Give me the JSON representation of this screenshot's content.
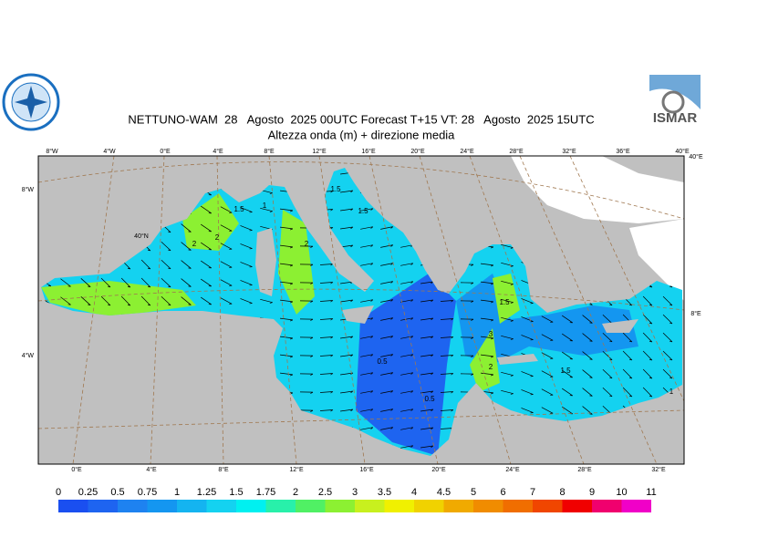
{
  "header": {
    "title": "NETTUNO-WAM  28   Agosto  2025 00UTC Forecast T+15 VT: 28   Agosto  2025 15UTC",
    "subtitle": "Altezza onda (m) + direzione media",
    "logo": "ISMAR"
  },
  "map": {
    "top_labels": [
      "8°W",
      "4°W",
      "0°E",
      "4°E",
      "8°E",
      "12°E",
      "16°E",
      "20°E",
      "24°E",
      "28°E",
      "32°E",
      "36°E",
      "40°E"
    ],
    "bottom_labels": [
      "0°E",
      "4°E",
      "8°E",
      "12°E",
      "16°E",
      "20°E",
      "24°E",
      "28°E",
      "32°E"
    ],
    "left_labels": [
      "8°W",
      "4°W"
    ],
    "right_labels": [
      "40°E",
      "8°E"
    ],
    "inner_label": "40°N",
    "contour_labels": [
      "1.5",
      "2",
      "2",
      "1.5",
      "1.5",
      "1",
      "2",
      "0.5",
      "0.5",
      "3",
      "1.5",
      "2",
      "1.5",
      "1"
    ]
  },
  "colorbar": {
    "levels": [
      0,
      0.25,
      0.5,
      0.75,
      1,
      1.25,
      1.5,
      1.75,
      2,
      2.5,
      3,
      3.5,
      4,
      4.5,
      5,
      6,
      7,
      8,
      9,
      10,
      11
    ],
    "colors": [
      "#1a4ff0",
      "#1e64f0",
      "#1e82f0",
      "#1496f0",
      "#14b4f0",
      "#14d2f0",
      "#00f0f0",
      "#28f0aa",
      "#50f064",
      "#8cf032",
      "#c8f01e",
      "#f0f000",
      "#f0d200",
      "#f0aa00",
      "#f08c00",
      "#f06e00",
      "#f04600",
      "#f00000",
      "#f0006e",
      "#f000c8"
    ]
  }
}
